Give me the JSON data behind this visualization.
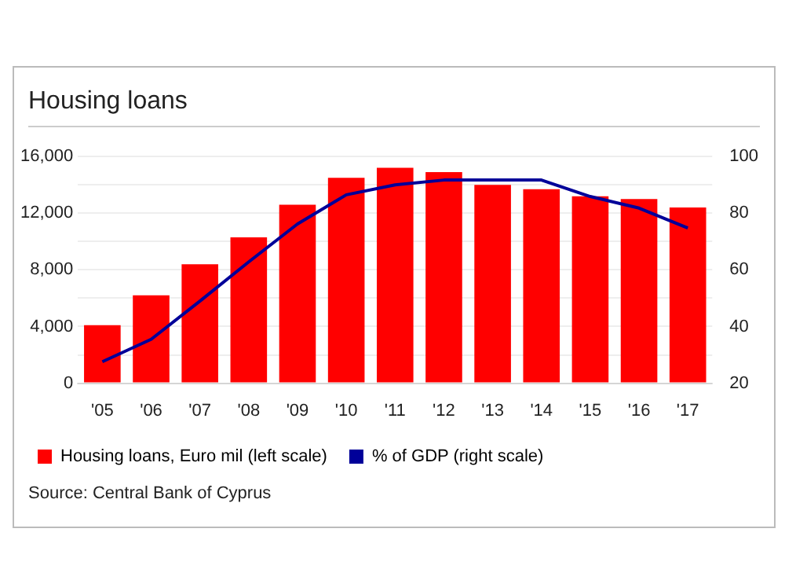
{
  "chart_data": {
    "type": "bar",
    "title": "Housing loans",
    "categories": [
      "'05",
      "'06",
      "'07",
      "'08",
      "'09",
      "'10",
      "'11",
      "'12",
      "'13",
      "'14",
      "'15",
      "'16",
      "'17"
    ],
    "series": [
      {
        "name": "Housing loans, Euro mil (left scale)",
        "color": "#ff0000",
        "values": [
          4100,
          6200,
          8400,
          10300,
          12600,
          14500,
          15200,
          14900,
          14000,
          13700,
          13200,
          13000,
          12400
        ]
      },
      {
        "name": "% of GDP (right scale)",
        "type": "line",
        "axis": "y2",
        "color": "#000099",
        "values": [
          27.6,
          35.5,
          49,
          62.8,
          76.2,
          86.5,
          90,
          91.7,
          91.7,
          91.7,
          85.9,
          81.8,
          74.8
        ]
      }
    ],
    "ylim": [
      0,
      16000
    ],
    "yticks": [
      0,
      {
        "value": 2000,
        "label": null
      },
      {
        "value": 4000,
        "label": "4,000"
      },
      {
        "value": 6000,
        "label": null
      },
      {
        "value": 8000,
        "label": "8,000"
      },
      {
        "value": 10000,
        "label": null
      },
      {
        "value": 12000,
        "label": "12,000"
      },
      {
        "value": 14000,
        "label": null
      },
      {
        "value": 16000,
        "label": "16,000"
      }
    ],
    "y2lim": [
      20,
      100
    ],
    "y2ticks": [
      20,
      40,
      60,
      80,
      100
    ],
    "grid": "y",
    "legend": "bottom",
    "marker": "none",
    "line_style": "solid",
    "annotations": [
      "Source: Central Bank of Cyprus"
    ]
  }
}
